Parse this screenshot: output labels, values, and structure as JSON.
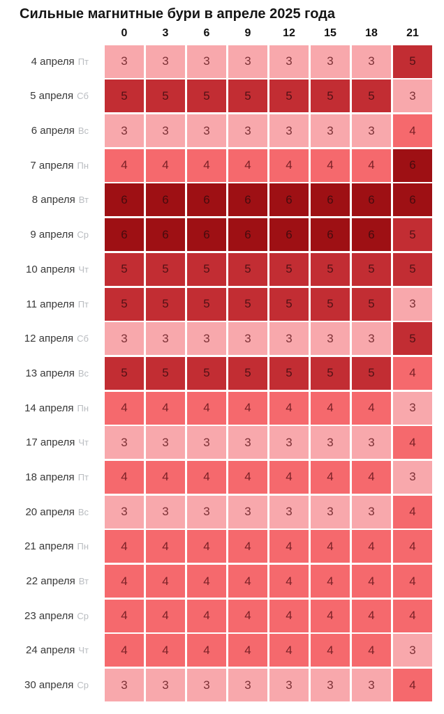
{
  "header": {
    "title": "Сильные магнитные бури в апреле 2025 года"
  },
  "chart_data": {
    "type": "heatmap",
    "title": "Сильные магнитные бури в апреле 2025 года",
    "columns": [
      "0",
      "3",
      "6",
      "9",
      "12",
      "15",
      "18",
      "21"
    ],
    "rows": [
      {
        "date": "4 апреля",
        "weekday": "Пт",
        "values": [
          3,
          3,
          3,
          3,
          3,
          3,
          3,
          5
        ]
      },
      {
        "date": "5 апреля",
        "weekday": "Сб",
        "values": [
          5,
          5,
          5,
          5,
          5,
          5,
          5,
          3
        ]
      },
      {
        "date": "6 апреля",
        "weekday": "Вс",
        "values": [
          3,
          3,
          3,
          3,
          3,
          3,
          3,
          4
        ]
      },
      {
        "date": "7 апреля",
        "weekday": "Пн",
        "values": [
          4,
          4,
          4,
          4,
          4,
          4,
          4,
          6
        ]
      },
      {
        "date": "8 апреля",
        "weekday": "Вт",
        "values": [
          6,
          6,
          6,
          6,
          6,
          6,
          6,
          6
        ]
      },
      {
        "date": "9 апреля",
        "weekday": "Ср",
        "values": [
          6,
          6,
          6,
          6,
          6,
          6,
          6,
          5
        ]
      },
      {
        "date": "10 апреля",
        "weekday": "Чт",
        "values": [
          5,
          5,
          5,
          5,
          5,
          5,
          5,
          5
        ]
      },
      {
        "date": "11 апреля",
        "weekday": "Пт",
        "values": [
          5,
          5,
          5,
          5,
          5,
          5,
          5,
          3
        ]
      },
      {
        "date": "12 апреля",
        "weekday": "Сб",
        "values": [
          3,
          3,
          3,
          3,
          3,
          3,
          3,
          5
        ]
      },
      {
        "date": "13 апреля",
        "weekday": "Вс",
        "values": [
          5,
          5,
          5,
          5,
          5,
          5,
          5,
          4
        ]
      },
      {
        "date": "14 апреля",
        "weekday": "Пн",
        "values": [
          4,
          4,
          4,
          4,
          4,
          4,
          4,
          3
        ]
      },
      {
        "date": "17 апреля",
        "weekday": "Чт",
        "values": [
          3,
          3,
          3,
          3,
          3,
          3,
          3,
          4
        ]
      },
      {
        "date": "18 апреля",
        "weekday": "Пт",
        "values": [
          4,
          4,
          4,
          4,
          4,
          4,
          4,
          3
        ]
      },
      {
        "date": "20 апреля",
        "weekday": "Вс",
        "values": [
          3,
          3,
          3,
          3,
          3,
          3,
          3,
          4
        ]
      },
      {
        "date": "21 апреля",
        "weekday": "Пн",
        "values": [
          4,
          4,
          4,
          4,
          4,
          4,
          4,
          4
        ]
      },
      {
        "date": "22 апреля",
        "weekday": "Вт",
        "values": [
          4,
          4,
          4,
          4,
          4,
          4,
          4,
          4
        ]
      },
      {
        "date": "23 апреля",
        "weekday": "Ср",
        "values": [
          4,
          4,
          4,
          4,
          4,
          4,
          4,
          4
        ]
      },
      {
        "date": "24 апреля",
        "weekday": "Чт",
        "values": [
          4,
          4,
          4,
          4,
          4,
          4,
          4,
          3
        ]
      },
      {
        "date": "30 апреля",
        "weekday": "Ср",
        "values": [
          3,
          3,
          3,
          3,
          3,
          3,
          3,
          4
        ]
      }
    ],
    "value_scale": {
      "3": {
        "bg": "#f8a8ac",
        "fg": "#7d3136"
      },
      "4": {
        "bg": "#f5696d",
        "fg": "#7a2026"
      },
      "5": {
        "bg": "#c22d33",
        "fg": "#521115"
      },
      "6": {
        "bg": "#9e1014",
        "fg": "#460b0e"
      }
    },
    "value_range": [
      3,
      6
    ],
    "legend_position": "none",
    "grid": "white 3px gaps between cells",
    "colors": {
      "title_text": "#151515",
      "column_header_text": "#101010",
      "row_date_text": "#383838",
      "row_weekday_text": "#b9bcc0",
      "page_background": "#ffffff"
    }
  }
}
